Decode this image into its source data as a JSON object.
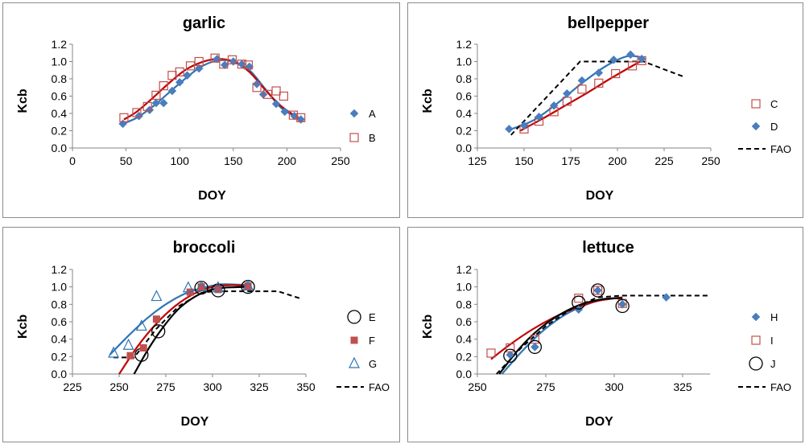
{
  "colors": {
    "blue": "#4a7dbe",
    "blue_line": "#2e75b6",
    "red": "#c0504d",
    "red_line": "#c00000",
    "black": "#000000",
    "frame": "#8c8c8c"
  },
  "chart_data": [
    {
      "type": "scatter",
      "title": "garlic",
      "xlabel": "DOY",
      "ylabel": "Kcb",
      "xlim": [
        0,
        250
      ],
      "ylim": [
        0,
        1.2
      ],
      "x_ticks": [
        "0",
        "50",
        "100",
        "150",
        "200",
        "250"
      ],
      "y_ticks": [
        "0.0",
        "0.2",
        "0.4",
        "0.6",
        "0.8",
        "1.0",
        "1.2"
      ],
      "series": [
        {
          "name": "A",
          "marker": "diamond-filled",
          "color": "#4a7dbe",
          "x": [
            47,
            62,
            72,
            78,
            85,
            93,
            100,
            107,
            118,
            135,
            142,
            150,
            158,
            165,
            172,
            178,
            190,
            198,
            207,
            213
          ],
          "y": [
            0.28,
            0.37,
            0.44,
            0.52,
            0.52,
            0.66,
            0.76,
            0.84,
            0.92,
            1.03,
            0.96,
            1.0,
            0.97,
            0.94,
            0.74,
            0.62,
            0.51,
            0.42,
            0.37,
            0.33
          ]
        },
        {
          "name": "B",
          "marker": "square-open",
          "color": "#c0504d",
          "x": [
            48,
            60,
            70,
            78,
            85,
            93,
            100,
            110,
            118,
            133,
            141,
            149,
            158,
            164,
            172,
            182,
            190,
            197,
            206,
            213
          ],
          "y": [
            0.35,
            0.41,
            0.48,
            0.61,
            0.72,
            0.84,
            0.88,
            0.95,
            1.0,
            1.04,
            0.97,
            1.02,
            0.97,
            0.96,
            0.7,
            0.62,
            0.66,
            0.6,
            0.38,
            0.35
          ]
        }
      ],
      "fits": [
        {
          "name": "A fit",
          "color": "#2e75b6",
          "x": [
            47,
            60,
            75,
            90,
            105,
            120,
            135,
            150,
            165,
            180,
            195,
            213
          ],
          "y": [
            0.28,
            0.35,
            0.48,
            0.64,
            0.8,
            0.94,
            1.01,
            1.0,
            0.9,
            0.68,
            0.46,
            0.33
          ]
        },
        {
          "name": "B fit",
          "color": "#c00000",
          "x": [
            48,
            60,
            75,
            90,
            105,
            120,
            135,
            150,
            165,
            180,
            195,
            213
          ],
          "y": [
            0.33,
            0.42,
            0.58,
            0.75,
            0.9,
            0.99,
            1.03,
            1.0,
            0.88,
            0.67,
            0.48,
            0.33
          ]
        }
      ],
      "legend": [
        "A",
        "B"
      ]
    },
    {
      "type": "scatter",
      "title": "bellpepper",
      "xlabel": "DOY",
      "ylabel": "Kcb",
      "xlim": [
        125,
        250
      ],
      "ylim": [
        0,
        1.2
      ],
      "x_ticks": [
        "125",
        "150",
        "175",
        "200",
        "225",
        "250"
      ],
      "y_ticks": [
        "0.0",
        "0.2",
        "0.4",
        "0.6",
        "0.8",
        "1.0",
        "1.2"
      ],
      "series": [
        {
          "name": "C",
          "marker": "square-open",
          "color": "#c0504d",
          "x": [
            150,
            158,
            166,
            173,
            181,
            190,
            199,
            208,
            213
          ],
          "y": [
            0.22,
            0.31,
            0.42,
            0.54,
            0.68,
            0.75,
            0.86,
            0.95,
            1.01
          ]
        },
        {
          "name": "D",
          "marker": "diamond-filled",
          "color": "#4a7dbe",
          "x": [
            142,
            150,
            158,
            166,
            173,
            181,
            190,
            198,
            207,
            213
          ],
          "y": [
            0.22,
            0.26,
            0.36,
            0.49,
            0.63,
            0.78,
            0.87,
            1.02,
            1.08,
            1.03
          ]
        }
      ],
      "fits": [
        {
          "name": "C fit",
          "color": "#c00000",
          "x": [
            148,
            160,
            172,
            184,
            196,
            208,
            213
          ],
          "y": [
            0.2,
            0.34,
            0.49,
            0.64,
            0.8,
            0.95,
            1.01
          ]
        },
        {
          "name": "D fit",
          "color": "#2e75b6",
          "x": [
            142,
            155,
            168,
            181,
            194,
            205,
            213
          ],
          "y": [
            0.21,
            0.32,
            0.52,
            0.75,
            0.95,
            1.06,
            1.05
          ]
        },
        {
          "name": "FAO",
          "color": "#000000",
          "dashed": true,
          "x": [
            143,
            180,
            214,
            236
          ],
          "y": [
            0.15,
            1.0,
            1.0,
            0.82
          ]
        }
      ],
      "legend": [
        "C",
        "D",
        "FAO"
      ]
    },
    {
      "type": "scatter",
      "title": "broccoli",
      "xlabel": "DOY",
      "ylabel": "Kcb",
      "xlim": [
        225,
        350
      ],
      "ylim": [
        0,
        1.2
      ],
      "x_ticks": [
        "225",
        "250",
        "275",
        "300",
        "325",
        "350"
      ],
      "y_ticks": [
        "0.0",
        "0.2",
        "0.4",
        "0.6",
        "0.8",
        "1.0",
        "1.2"
      ],
      "series": [
        {
          "name": "E",
          "marker": "circle-open",
          "color": "#000000",
          "x": [
            262,
            271,
            294,
            303,
            319
          ],
          "y": [
            0.22,
            0.49,
            0.99,
            0.96,
            1.0
          ]
        },
        {
          "name": "F",
          "marker": "square-filled",
          "color": "#c0504d",
          "x": [
            256,
            263,
            270,
            288,
            294,
            303,
            319
          ],
          "y": [
            0.21,
            0.3,
            0.63,
            0.94,
            1.0,
            0.97,
            1.01
          ]
        },
        {
          "name": "G",
          "marker": "triangle-open",
          "color": "#2e75b6",
          "x": [
            247,
            255,
            262,
            270,
            287,
            294,
            303,
            319
          ],
          "y": [
            0.24,
            0.33,
            0.55,
            0.89,
            0.99,
            1.0,
            0.99,
            1.01
          ]
        }
      ],
      "fits": [
        {
          "name": "G fit",
          "color": "#2e75b6",
          "x": [
            245,
            255,
            265,
            275,
            285,
            295,
            305,
            319
          ],
          "y": [
            0.22,
            0.44,
            0.64,
            0.8,
            0.92,
            0.99,
            1.03,
            1.02
          ]
        },
        {
          "name": "F fit",
          "color": "#c00000",
          "x": [
            250,
            260,
            270,
            280,
            290,
            300,
            310,
            319
          ],
          "y": [
            0.0,
            0.32,
            0.58,
            0.78,
            0.92,
            1.0,
            1.02,
            1.01
          ]
        },
        {
          "name": "E fit",
          "color": "#000000",
          "x": [
            258,
            266,
            274,
            282,
            290,
            298,
            306,
            319
          ],
          "y": [
            0.0,
            0.3,
            0.55,
            0.75,
            0.88,
            0.96,
            0.99,
            1.0
          ]
        },
        {
          "name": "FAO",
          "color": "#000000",
          "dashed": true,
          "x": [
            247,
            258,
            270,
            282,
            294,
            300,
            335,
            348
          ],
          "y": [
            0.19,
            0.19,
            0.52,
            0.78,
            0.93,
            0.95,
            0.95,
            0.86
          ]
        }
      ],
      "legend": [
        "E",
        "F",
        "G",
        "FAO"
      ]
    },
    {
      "type": "scatter",
      "title": "lettuce",
      "xlabel": "DOY",
      "ylabel": "Kcb",
      "xlim": [
        250,
        335
      ],
      "ylim": [
        0,
        1.2
      ],
      "x_ticks": [
        "250",
        "275",
        "300",
        "325"
      ],
      "y_ticks": [
        "0.0",
        "0.2",
        "0.4",
        "0.6",
        "0.8",
        "1.0",
        "1.2"
      ],
      "series": [
        {
          "name": "H",
          "marker": "diamond-filled",
          "color": "#4a7dbe",
          "x": [
            262,
            271,
            287,
            294,
            303,
            319
          ],
          "y": [
            0.22,
            0.31,
            0.74,
            0.96,
            0.8,
            0.88
          ]
        },
        {
          "name": "I",
          "marker": "square-open",
          "color": "#c0504d",
          "x": [
            255,
            262,
            271,
            287,
            294,
            303
          ],
          "y": [
            0.24,
            0.3,
            0.4,
            0.87,
            0.96,
            0.81
          ]
        },
        {
          "name": "J",
          "marker": "circle-open",
          "color": "#000000",
          "x": [
            262,
            271,
            287,
            294,
            303
          ],
          "y": [
            0.21,
            0.31,
            0.82,
            0.96,
            0.78
          ]
        }
      ],
      "fits": [
        {
          "name": "H fit",
          "color": "#2e75b6",
          "x": [
            259,
            266,
            273,
            280,
            287,
            294,
            303
          ],
          "y": [
            0.0,
            0.25,
            0.47,
            0.64,
            0.76,
            0.84,
            0.88
          ]
        },
        {
          "name": "I fit",
          "color": "#c00000",
          "x": [
            255,
            262,
            270,
            278,
            286,
            294,
            303
          ],
          "y": [
            0.17,
            0.34,
            0.51,
            0.65,
            0.76,
            0.84,
            0.88
          ]
        },
        {
          "name": "J fit",
          "color": "#000000",
          "x": [
            258,
            265,
            272,
            280,
            288,
            296,
            303
          ],
          "y": [
            0.0,
            0.28,
            0.5,
            0.68,
            0.8,
            0.86,
            0.87
          ]
        },
        {
          "name": "FAO",
          "color": "#000000",
          "dashed": true,
          "x": [
            257,
            266,
            275,
            285,
            294,
            303,
            335
          ],
          "y": [
            0.0,
            0.3,
            0.55,
            0.76,
            0.88,
            0.9,
            0.9
          ]
        }
      ],
      "legend": [
        "H",
        "I",
        "J",
        "FAO"
      ]
    }
  ]
}
